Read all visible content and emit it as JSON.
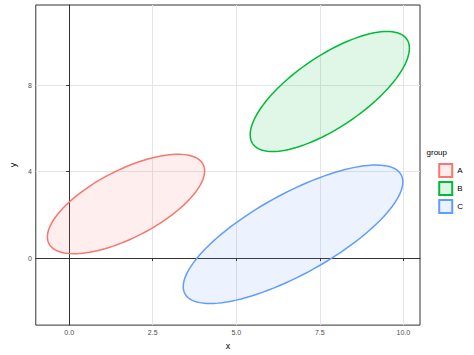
{
  "chart_data": {
    "type": "ellipse",
    "xlabel": "x",
    "ylabel": "y",
    "legend_title": "group",
    "legend": "right",
    "grid": true,
    "xlim": [
      -1,
      10.5
    ],
    "ylim": [
      -3.1,
      11.7
    ],
    "xticks": [
      {
        "value": 0,
        "label": "0.0"
      },
      {
        "value": 2.5,
        "label": "2.5"
      },
      {
        "value": 5,
        "label": "5.0"
      },
      {
        "value": 7.5,
        "label": "7.5"
      },
      {
        "value": 10,
        "label": "10.0"
      }
    ],
    "yticks": [
      0,
      4,
      8
    ],
    "series": [
      {
        "name": "A",
        "color": "#F8766D",
        "center": [
          1.7,
          2.5
        ],
        "semi_axes": [
          3.0,
          1.35
        ],
        "angle": 44
      },
      {
        "name": "B",
        "color": "#00BA38",
        "center": [
          7.8,
          7.7
        ],
        "semi_axes": [
          3.4,
          1.35
        ],
        "angle": 51
      },
      {
        "name": "C",
        "color": "#619CFF",
        "center": [
          6.7,
          1.1
        ],
        "semi_axes": [
          4.3,
          1.6
        ],
        "angle": 44
      }
    ]
  }
}
